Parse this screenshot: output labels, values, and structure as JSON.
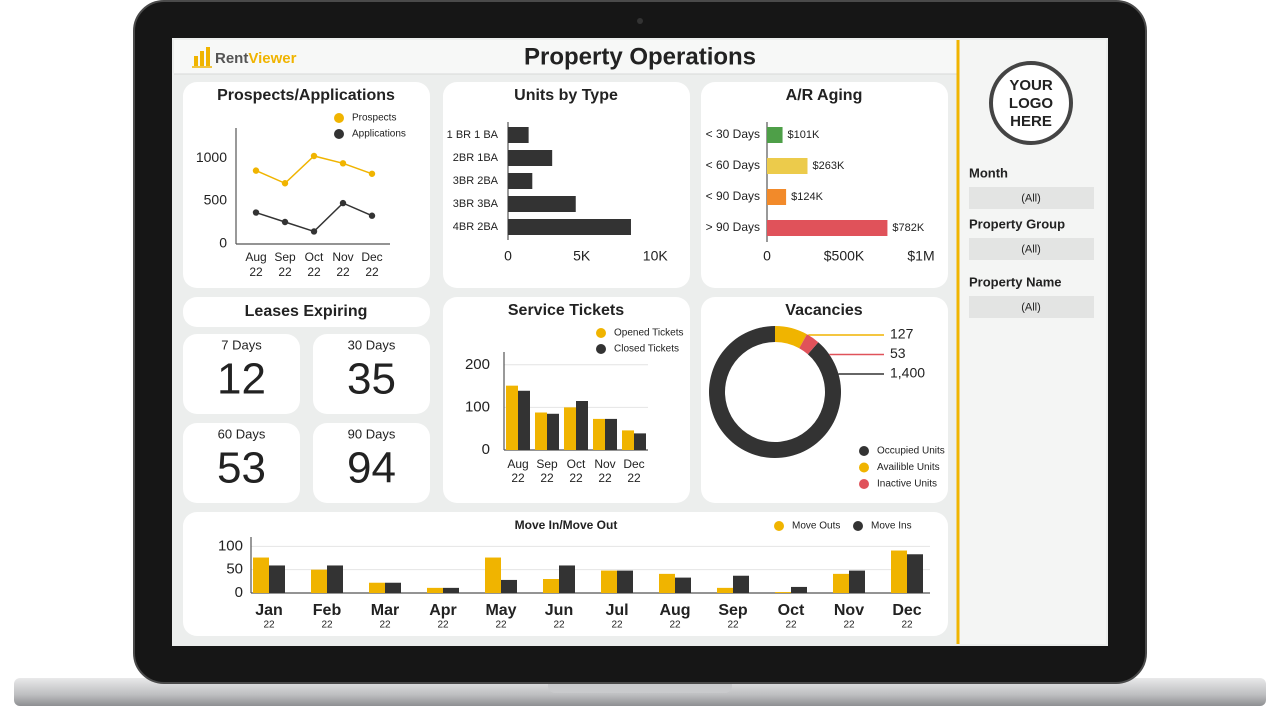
{
  "header": {
    "brand": [
      "Rent",
      "Viewer"
    ],
    "title": "Property Operations"
  },
  "logo": [
    "YOUR",
    "LOGO",
    "HERE"
  ],
  "filters": [
    {
      "label": "Month",
      "value": "(All)"
    },
    {
      "label": "Property Group",
      "value": "(All)"
    },
    {
      "label": "Property Name",
      "value": "(All)"
    }
  ],
  "leases": {
    "title": "Leases Expiring",
    "cards": [
      {
        "label": "7 Days",
        "value": 12
      },
      {
        "label": "30 Days",
        "value": 35
      },
      {
        "label": "60 Days",
        "value": 53
      },
      {
        "label": "90 Days",
        "value": 94
      }
    ]
  },
  "chart_data": [
    {
      "type": "line",
      "title": "Prospects/Applications",
      "categories": [
        "Aug",
        "Sep",
        "Oct",
        "Nov",
        "Dec"
      ],
      "category_years": [
        "22",
        "22",
        "22",
        "22",
        "22"
      ],
      "series": [
        {
          "name": "Prospects",
          "color": "#f0b400",
          "values": [
            854,
            707,
            1024,
            939,
            817
          ]
        },
        {
          "name": "Applications",
          "color": "#333333",
          "values": [
            366,
            256,
            146,
            476,
            329
          ]
        }
      ],
      "ylim": [
        0,
        1350
      ],
      "yticks": [
        0,
        500,
        1000
      ],
      "grid": false,
      "legend": "top-right"
    },
    {
      "type": "bar",
      "orientation": "horizontal",
      "title": "Units by Type",
      "categories": [
        "1 BR 1 BA",
        "2BR 1BA",
        "3BR 2BA",
        "3BR 3BA",
        "4BR 2BA"
      ],
      "values": [
        1400,
        3000,
        1650,
        4600,
        8350
      ],
      "color": "#333333",
      "xlim": [
        0,
        11000
      ],
      "xticks": [
        0,
        {
          "value": 5000,
          "label": "5K"
        },
        {
          "value": 10000,
          "label": "10K"
        }
      ],
      "grid": false
    },
    {
      "type": "bar",
      "orientation": "horizontal",
      "title": "A/R Aging",
      "categories": [
        "< 30 Days",
        "< 60 Days",
        "< 90 Days",
        "> 90 Days"
      ],
      "values": [
        101000,
        263000,
        124000,
        782000
      ],
      "value_labels": [
        "$101K",
        "$263K",
        "$124K",
        "$782K"
      ],
      "colors": [
        "#4e9f48",
        "#eccb4b",
        "#f28a2a",
        "#e0525a"
      ],
      "xlim": [
        0,
        1000000
      ],
      "xticks": [
        0,
        {
          "value": 500000,
          "label": "$500K"
        },
        {
          "value": 1000000,
          "label": "$1M"
        }
      ],
      "grid": false
    },
    {
      "type": "bar",
      "title": "Service Tickets",
      "categories": [
        "Aug",
        "Sep",
        "Oct",
        "Nov",
        "Dec"
      ],
      "category_years": [
        "22",
        "22",
        "22",
        "22",
        "22"
      ],
      "series": [
        {
          "name": "Opened Tickets",
          "color": "#f0b400",
          "values": [
            151,
            88,
            100,
            73,
            46
          ]
        },
        {
          "name": "Closed Tickets",
          "color": "#333333",
          "values": [
            139,
            85,
            115,
            73,
            39
          ]
        }
      ],
      "ylim": [
        0,
        230
      ],
      "yticks": [
        0,
        100,
        200
      ],
      "grid": true,
      "legend": "top-right"
    },
    {
      "type": "pie",
      "donut": true,
      "title": "Vacancies",
      "categories": [
        "Occupied Units",
        "Availible Units",
        "Inactive Units"
      ],
      "values": [
        1400,
        127,
        53
      ],
      "value_labels": [
        "1,400",
        "127",
        "53"
      ],
      "colors": [
        "#333333",
        "#f0b400",
        "#e0525a"
      ],
      "legend": "bottom-right"
    },
    {
      "type": "bar",
      "title": "Move In/Move Out",
      "categories": [
        "Jan",
        "Feb",
        "Mar",
        "Apr",
        "May",
        "Jun",
        "Jul",
        "Aug",
        "Sep",
        "Oct",
        "Nov",
        "Dec"
      ],
      "category_years": [
        "22",
        "22",
        "22",
        "22",
        "22",
        "22",
        "22",
        "22",
        "22",
        "22",
        "22",
        "22"
      ],
      "series": [
        {
          "name": "Move Outs",
          "color": "#f0b400",
          "values": [
            76,
            50,
            22,
            11,
            76,
            30,
            48,
            41,
            11,
            2,
            41,
            91
          ]
        },
        {
          "name": "Move Ins",
          "color": "#333333",
          "values": [
            59,
            59,
            22,
            11,
            28,
            59,
            48,
            33,
            37,
            13,
            48,
            83
          ]
        }
      ],
      "ylim": [
        0,
        120
      ],
      "yticks": [
        0,
        50,
        100
      ],
      "grid": true,
      "legend": "top-right"
    }
  ]
}
